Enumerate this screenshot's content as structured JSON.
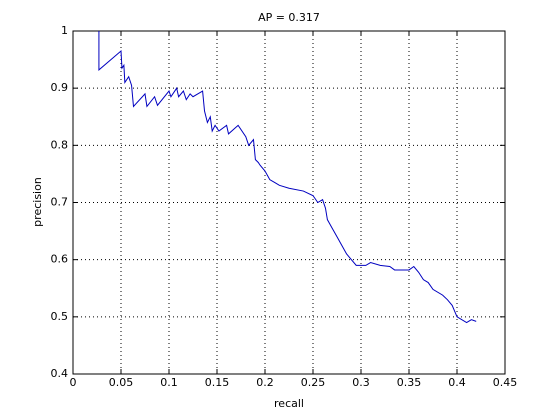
{
  "chart_data": {
    "type": "line",
    "title": "AP = 0.317",
    "x_label": "recall",
    "y_label": "precision",
    "x": [
      0.027,
      0.027,
      0.05,
      0.051,
      0.053,
      0.054,
      0.058,
      0.061,
      0.063,
      0.075,
      0.077,
      0.085,
      0.088,
      0.1,
      0.102,
      0.108,
      0.11,
      0.115,
      0.118,
      0.122,
      0.125,
      0.135,
      0.137,
      0.14,
      0.143,
      0.145,
      0.148,
      0.152,
      0.16,
      0.162,
      0.172,
      0.18,
      0.183,
      0.188,
      0.19,
      0.193,
      0.195,
      0.2,
      0.205,
      0.21,
      0.215,
      0.225,
      0.24,
      0.25,
      0.255,
      0.26,
      0.263,
      0.265,
      0.27,
      0.275,
      0.28,
      0.285,
      0.29,
      0.295,
      0.305,
      0.31,
      0.32,
      0.33,
      0.335,
      0.35,
      0.355,
      0.36,
      0.365,
      0.37,
      0.375,
      0.385,
      0.39,
      0.395,
      0.4,
      0.41,
      0.415,
      0.42
    ],
    "series": [
      {
        "color": "#0000c0",
        "values": [
          1.0,
          0.932,
          0.965,
          0.935,
          0.94,
          0.91,
          0.92,
          0.905,
          0.868,
          0.89,
          0.868,
          0.885,
          0.87,
          0.895,
          0.885,
          0.9,
          0.885,
          0.895,
          0.88,
          0.89,
          0.885,
          0.895,
          0.86,
          0.84,
          0.85,
          0.825,
          0.835,
          0.825,
          0.835,
          0.82,
          0.835,
          0.815,
          0.8,
          0.81,
          0.775,
          0.77,
          0.765,
          0.755,
          0.74,
          0.735,
          0.73,
          0.725,
          0.72,
          0.712,
          0.7,
          0.705,
          0.69,
          0.67,
          0.655,
          0.64,
          0.625,
          0.61,
          0.6,
          0.59,
          0.59,
          0.595,
          0.59,
          0.588,
          0.582,
          0.582,
          0.588,
          0.578,
          0.565,
          0.56,
          0.548,
          0.538,
          0.53,
          0.52,
          0.5,
          0.49,
          0.495,
          0.492
        ]
      }
    ],
    "xlim": [
      0,
      0.45
    ],
    "xticks": [
      0,
      0.05,
      0.1,
      0.15,
      0.2,
      0.25,
      0.3,
      0.35,
      0.4,
      0.45
    ],
    "ylim": [
      0.4,
      1
    ],
    "yticks": [
      0.4,
      0.5,
      0.6,
      0.7,
      0.8,
      0.9,
      1
    ],
    "grid": true
  }
}
